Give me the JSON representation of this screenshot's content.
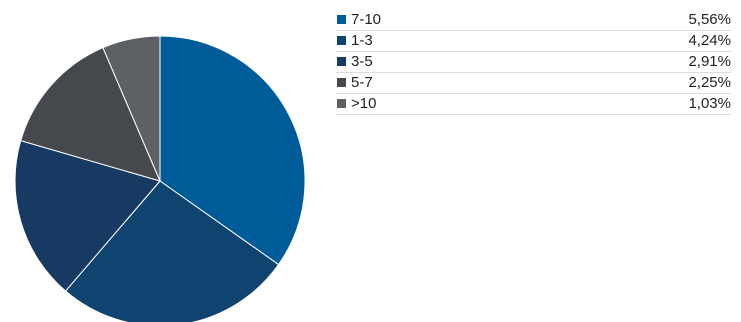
{
  "chart_data": {
    "type": "pie",
    "categories": [
      "7-10",
      "1-3",
      "3-5",
      "5-7",
      ">10"
    ],
    "values": [
      5.56,
      4.24,
      2.91,
      2.25,
      1.03
    ],
    "value_labels": [
      "5,56%",
      "4,24%",
      "2,91%",
      "2,25%",
      "1,03%"
    ],
    "colors": [
      "#005b99",
      "#0f4470",
      "#163a62",
      "#45484d",
      "#5d6166"
    ],
    "slice_order": "clockwise from top",
    "legend_position": "right"
  }
}
